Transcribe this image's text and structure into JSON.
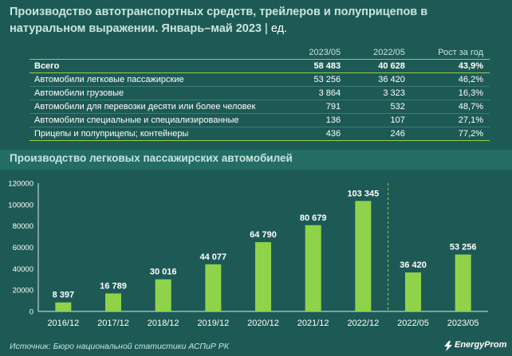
{
  "header": {
    "title": "Производство автотранспортных средств, трейлеров и полуприцепов в натуральном выражении. Январь–май 2023",
    "unit": "| ед."
  },
  "table": {
    "columns": [
      "",
      "2023/05",
      "2022/05",
      "Рост за год"
    ],
    "rows": [
      {
        "label": "Всего",
        "v2023": "58 483",
        "v2022": "40 628",
        "growth": "43,9%"
      },
      {
        "label": "Автомобили легковые пассажирские",
        "v2023": "53 256",
        "v2022": "36 420",
        "growth": "46,2%"
      },
      {
        "label": "Автомобили грузовые",
        "v2023": "3 864",
        "v2022": "3 323",
        "growth": "16,3%"
      },
      {
        "label": "Автомобили для перевозки десяти или более человек",
        "v2023": "791",
        "v2022": "532",
        "growth": "48,7%"
      },
      {
        "label": "Автомобили специальные и специализированные",
        "v2023": "136",
        "v2022": "107",
        "growth": "27,1%"
      },
      {
        "label": "Прицепы и полуприцепы; контейнеры",
        "v2023": "436",
        "v2022": "246",
        "growth": "77,2%"
      }
    ]
  },
  "chart_title": "Производство легковых пассажирских автомобилей",
  "chart_data": {
    "type": "bar",
    "title": "Производство легковых пассажирских автомобилей",
    "categories": [
      "2016/12",
      "2017/12",
      "2018/12",
      "2019/12",
      "2020/12",
      "2021/12",
      "2022/12",
      "2022/05",
      "2023/05"
    ],
    "values": [
      8397,
      16789,
      30016,
      44077,
      64790,
      80679,
      103345,
      36420,
      53256
    ],
    "value_labels": [
      "8 397",
      "16 789",
      "30 016",
      "44 077",
      "64 790",
      "80 679",
      "103 345",
      "36 420",
      "53 256"
    ],
    "ylim": [
      0,
      120000
    ],
    "yticks": [
      0,
      20000,
      40000,
      60000,
      80000,
      100000,
      120000
    ],
    "ytick_labels": [
      "0",
      "20000",
      "40000",
      "60000",
      "80000",
      "100000",
      "120000"
    ],
    "grid": false,
    "separator_after_index": 6,
    "bar_color": "#8fd34a"
  },
  "footer": {
    "source": "Источник: Бюро национальной статистики АСПиР РК",
    "logo_text": "EnergyProm"
  },
  "colors": {
    "background": "#1e5a55",
    "accent": "#8fd34a",
    "title_text": "#c8e5df"
  }
}
